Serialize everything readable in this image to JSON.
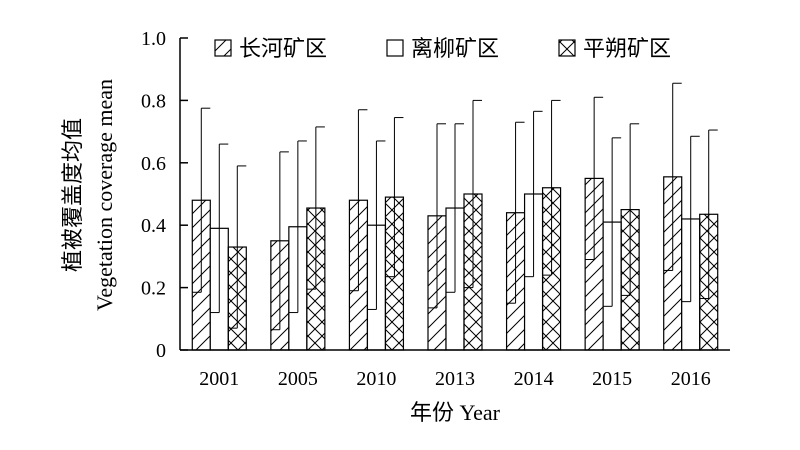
{
  "chart_data": {
    "type": "bar",
    "title": "",
    "xlabel": "年份 Year",
    "ylabel_cn": "植被覆盖度均值",
    "ylabel_en": "Vegetation coverage mean",
    "categories": [
      "2001",
      "2005",
      "2010",
      "2013",
      "2014",
      "2015",
      "2016"
    ],
    "ylim": [
      0,
      1.0
    ],
    "yticks": [
      "0",
      "0.2",
      "0.4",
      "0.6",
      "0.8",
      "1.0"
    ],
    "error_bars": "upper and lower (± standard deviation)",
    "legend_position": "top",
    "series": [
      {
        "name": "长河矿区",
        "pattern": "diagonal-forward",
        "values": [
          0.48,
          0.35,
          0.48,
          0.43,
          0.44,
          0.55,
          0.555
        ],
        "errors": [
          0.295,
          0.285,
          0.29,
          0.295,
          0.29,
          0.26,
          0.3
        ]
      },
      {
        "name": "离柳矿区",
        "pattern": "empty",
        "values": [
          0.39,
          0.395,
          0.4,
          0.455,
          0.5,
          0.41,
          0.42
        ],
        "errors": [
          0.27,
          0.275,
          0.27,
          0.27,
          0.265,
          0.27,
          0.265
        ]
      },
      {
        "name": "平朔矿区",
        "pattern": "cross-hatch",
        "values": [
          0.33,
          0.455,
          0.49,
          0.5,
          0.52,
          0.45,
          0.435
        ],
        "errors": [
          0.26,
          0.26,
          0.255,
          0.3,
          0.28,
          0.275,
          0.27
        ]
      }
    ]
  }
}
